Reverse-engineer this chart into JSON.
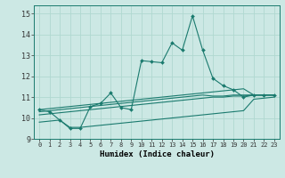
{
  "xlabel": "Humidex (Indice chaleur)",
  "bg_color": "#cce8e4",
  "grid_color": "#b0d8d0",
  "line_color": "#1a7a6e",
  "xlim": [
    -0.5,
    23.5
  ],
  "ylim": [
    9.0,
    15.4
  ],
  "yticks": [
    9,
    10,
    11,
    12,
    13,
    14,
    15
  ],
  "series_main": [
    10.4,
    10.3,
    9.9,
    9.5,
    9.5,
    10.55,
    10.7,
    11.2,
    10.5,
    10.4,
    12.75,
    12.7,
    12.65,
    13.6,
    13.25,
    14.9,
    13.25,
    11.9,
    11.55,
    11.35,
    11.0,
    11.1,
    11.1,
    11.1
  ],
  "series_upper": [
    10.4,
    10.45,
    10.5,
    10.55,
    10.6,
    10.65,
    10.7,
    10.75,
    10.8,
    10.85,
    10.9,
    10.95,
    11.0,
    11.05,
    11.1,
    11.15,
    11.2,
    11.25,
    11.3,
    11.35,
    11.4,
    11.1,
    11.1,
    11.1
  ],
  "series_mid1": [
    10.3,
    10.35,
    10.4,
    10.45,
    10.5,
    10.55,
    10.6,
    10.65,
    10.7,
    10.75,
    10.8,
    10.85,
    10.9,
    10.95,
    11.0,
    11.05,
    11.1,
    11.05,
    11.05,
    11.1,
    11.1,
    11.1,
    11.1,
    11.1
  ],
  "series_mid2": [
    10.15,
    10.2,
    10.25,
    10.3,
    10.35,
    10.4,
    10.45,
    10.5,
    10.55,
    10.6,
    10.65,
    10.7,
    10.75,
    10.8,
    10.85,
    10.9,
    10.95,
    11.0,
    11.0,
    11.05,
    11.05,
    11.1,
    11.1,
    11.1
  ],
  "series_lower": [
    9.8,
    9.85,
    9.9,
    9.55,
    9.55,
    9.6,
    9.65,
    9.7,
    9.75,
    9.8,
    9.85,
    9.9,
    9.95,
    10.0,
    10.05,
    10.1,
    10.15,
    10.2,
    10.25,
    10.3,
    10.35,
    10.9,
    10.95,
    11.0
  ]
}
